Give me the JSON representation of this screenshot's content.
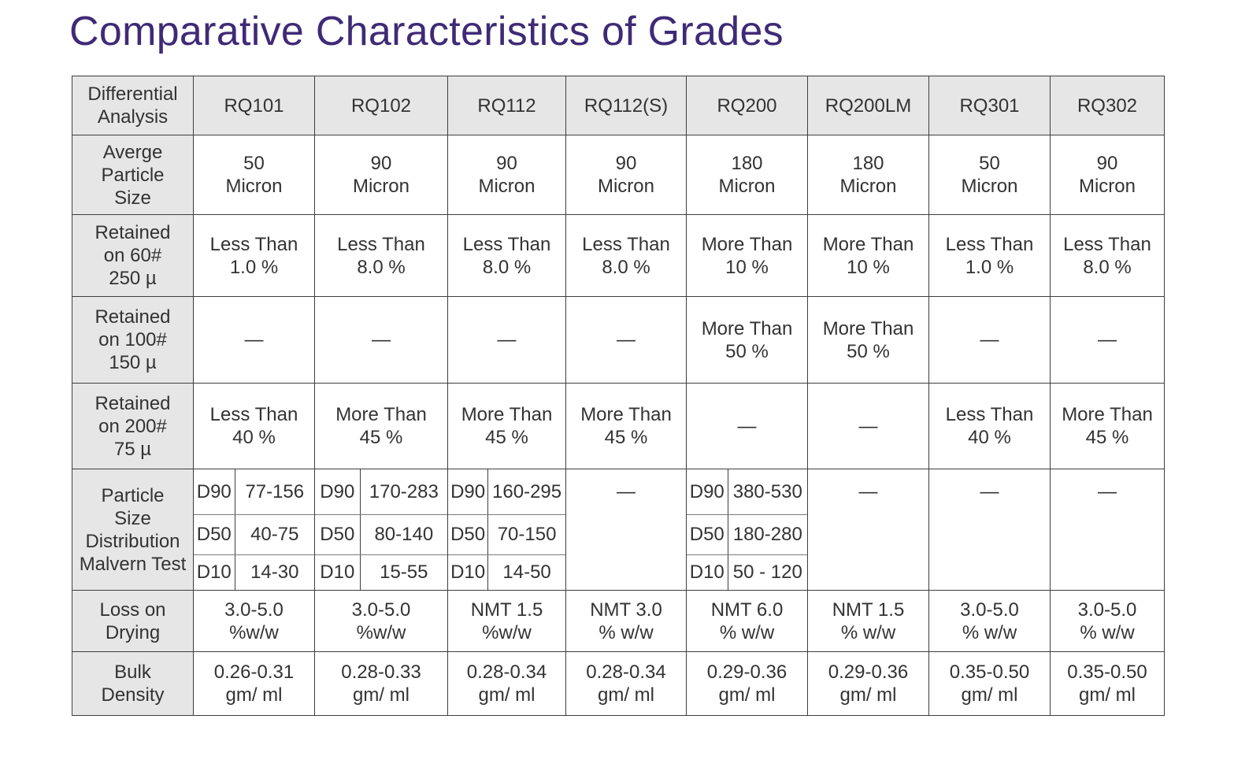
{
  "title": "Comparative Characteristics of Grades",
  "table": {
    "corner": [
      "Differential",
      "Analysis"
    ],
    "columns": [
      "RQ101",
      "RQ102",
      "RQ112",
      "RQ112(S)",
      "RQ200",
      "RQ200LM",
      "RQ301",
      "RQ302"
    ],
    "rows": [
      {
        "label": [
          "Averge",
          "Particle",
          "Size"
        ],
        "cells": [
          [
            "50",
            "Micron"
          ],
          [
            "90",
            "Micron"
          ],
          [
            "90",
            "Micron"
          ],
          [
            "90",
            "Micron"
          ],
          [
            "180",
            "Micron"
          ],
          [
            "180",
            "Micron"
          ],
          [
            "50",
            "Micron"
          ],
          [
            "90",
            "Micron"
          ]
        ]
      },
      {
        "label": [
          "Retained",
          "on 60#",
          "250 µ"
        ],
        "cells": [
          [
            "Less Than",
            "1.0 %"
          ],
          [
            "Less Than",
            "8.0 %"
          ],
          [
            "Less Than",
            "8.0 %"
          ],
          [
            "Less Than",
            "8.0 %"
          ],
          [
            "More Than",
            "10 %"
          ],
          [
            "More Than",
            "10 %"
          ],
          [
            "Less Than",
            "1.0 %"
          ],
          [
            "Less Than",
            "8.0 %"
          ]
        ]
      },
      {
        "label": [
          "Retained",
          "on 100#",
          "150 µ"
        ],
        "cells": [
          [
            "—"
          ],
          [
            "—"
          ],
          [
            "—"
          ],
          [
            "—"
          ],
          [
            "More Than",
            "50 %"
          ],
          [
            "More Than",
            "50 %"
          ],
          [
            "—"
          ],
          [
            "—"
          ]
        ]
      },
      {
        "label": [
          "Retained",
          "on 200#",
          "75 µ"
        ],
        "cells": [
          [
            "Less Than",
            "40 %"
          ],
          [
            "More Than",
            "45 %"
          ],
          [
            "More Than",
            "45 %"
          ],
          [
            "More Than",
            "45 %"
          ],
          [
            "—"
          ],
          [
            "—"
          ],
          [
            "Less Than",
            "40 %"
          ],
          [
            "More Than",
            "45 %"
          ]
        ]
      }
    ],
    "psd": {
      "label": [
        "Particle",
        "Size",
        "Distribution",
        "Malvern Test"
      ],
      "cells": [
        [
          [
            "D90",
            "77-156"
          ],
          [
            "D50",
            "40-75"
          ],
          [
            "D10",
            "14-30"
          ]
        ],
        [
          [
            "D90",
            "170-283"
          ],
          [
            "D50",
            "80-140"
          ],
          [
            "D10",
            "15-55"
          ]
        ],
        [
          [
            "D90",
            "160-295"
          ],
          [
            "D50",
            "70-150"
          ],
          [
            "D10",
            "14-50"
          ]
        ],
        "—",
        [
          [
            "D90",
            "380-530"
          ],
          [
            "D50",
            "180-280"
          ],
          [
            "D10",
            "50 - 120"
          ]
        ],
        "—",
        "—",
        "—"
      ]
    },
    "rows_after": [
      {
        "label": [
          "Loss on",
          "Drying"
        ],
        "cells": [
          [
            "3.0-5.0",
            "%w/w"
          ],
          [
            "3.0-5.0",
            "%w/w"
          ],
          [
            "NMT 1.5",
            "%w/w"
          ],
          [
            "NMT 3.0",
            "% w/w"
          ],
          [
            "NMT 6.0",
            "% w/w"
          ],
          [
            "NMT 1.5",
            "% w/w"
          ],
          [
            "3.0-5.0",
            "% w/w"
          ],
          [
            "3.0-5.0",
            "% w/w"
          ]
        ]
      },
      {
        "label": [
          "Bulk",
          "Density"
        ],
        "cells": [
          [
            "0.26-0.31",
            "gm/ ml"
          ],
          [
            "0.28-0.33",
            "gm/ ml"
          ],
          [
            "0.28-0.34",
            "gm/ ml"
          ],
          [
            "0.28-0.34",
            "gm/ ml"
          ],
          [
            "0.29-0.36",
            "gm/ ml"
          ],
          [
            "0.29-0.36",
            "gm/ ml"
          ],
          [
            "0.35-0.50",
            "gm/ ml"
          ],
          [
            "0.35-0.50",
            "gm/ ml"
          ]
        ]
      }
    ]
  }
}
